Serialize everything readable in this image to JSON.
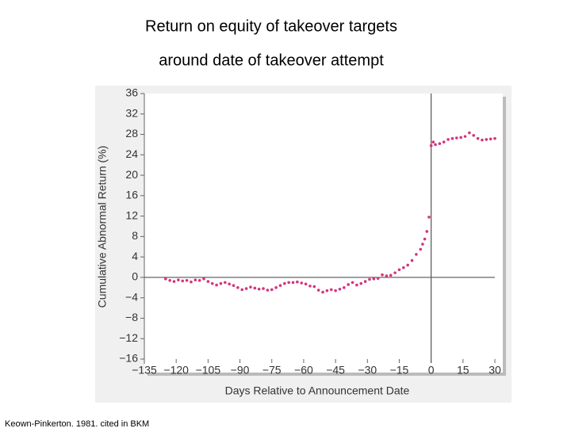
{
  "chart_data": {
    "type": "scatter",
    "title": [
      "Return on equity of takeover targets",
      "around date of takeover attempt"
    ],
    "xlabel": "Days Relative to Announcement Date",
    "ylabel": "Cumulative Abnormal Return (%)",
    "source": "Keown-Pinkerton. 1981. cited in BKM",
    "color": "#d6337f",
    "x": [
      -125,
      -123,
      -121,
      -119,
      -117,
      -115,
      -113,
      -111,
      -109,
      -107,
      -105,
      -103,
      -101,
      -99,
      -97,
      -95,
      -93,
      -91,
      -89,
      -87,
      -85,
      -83,
      -81,
      -79,
      -77,
      -75,
      -73,
      -71,
      -69,
      -67,
      -65,
      -63,
      -61,
      -59,
      -57,
      -55,
      -53,
      -51,
      -49,
      -47,
      -45,
      -43,
      -41,
      -39,
      -37,
      -35,
      -33,
      -31,
      -29,
      -27,
      -25,
      -23,
      -21,
      -19,
      -17,
      -15,
      -13,
      -11,
      -9,
      -7,
      -5,
      -4,
      -3,
      -2,
      -1,
      0,
      1,
      2,
      4,
      6,
      8,
      10,
      12,
      14,
      16,
      18,
      20,
      22,
      24,
      26,
      28,
      30
    ],
    "values": [
      -0.3,
      -0.6,
      -0.8,
      -0.5,
      -0.7,
      -0.6,
      -0.9,
      -0.5,
      -0.6,
      -0.3,
      -0.8,
      -1.2,
      -1.5,
      -1.2,
      -1.0,
      -1.3,
      -1.6,
      -2.0,
      -2.4,
      -2.2,
      -1.9,
      -2.1,
      -2.3,
      -2.2,
      -2.5,
      -2.4,
      -2.0,
      -1.6,
      -1.2,
      -1.0,
      -1.0,
      -0.9,
      -1.1,
      -1.3,
      -1.7,
      -1.8,
      -2.5,
      -2.9,
      -2.6,
      -2.4,
      -2.6,
      -2.3,
      -2.0,
      -1.4,
      -1.0,
      -1.5,
      -1.2,
      -0.8,
      -0.4,
      -0.3,
      -0.2,
      0.5,
      0.3,
      0.4,
      0.9,
      1.5,
      1.9,
      2.4,
      3.3,
      4.5,
      5.5,
      6.5,
      7.5,
      9.0,
      11.8,
      25.8,
      26.5,
      26.0,
      26.2,
      26.5,
      27.0,
      27.2,
      27.3,
      27.4,
      27.6,
      28.3,
      27.8,
      27.2,
      26.9,
      27.0,
      27.1,
      27.2
    ],
    "xlim": [
      -135,
      30
    ],
    "ylim": [
      -16,
      36
    ],
    "xticks": [
      {
        "value": -135,
        "label": "−135"
      },
      {
        "value": -120,
        "label": "−120"
      },
      {
        "value": -105,
        "label": "−105"
      },
      {
        "value": -90,
        "label": "−90"
      },
      {
        "value": -75,
        "label": "−75"
      },
      {
        "value": -60,
        "label": "−60"
      },
      {
        "value": -45,
        "label": "−45"
      },
      {
        "value": -30,
        "label": "−30"
      },
      {
        "value": -15,
        "label": "−15"
      },
      0,
      15,
      30
    ],
    "yticks": [
      {
        "value": -16,
        "label": "−16"
      },
      {
        "value": -12,
        "label": "−12"
      },
      {
        "value": -8,
        "label": "−8"
      },
      {
        "value": -4,
        "label": "−4"
      },
      0,
      4,
      8,
      12,
      16,
      20,
      24,
      28,
      32,
      36
    ]
  }
}
